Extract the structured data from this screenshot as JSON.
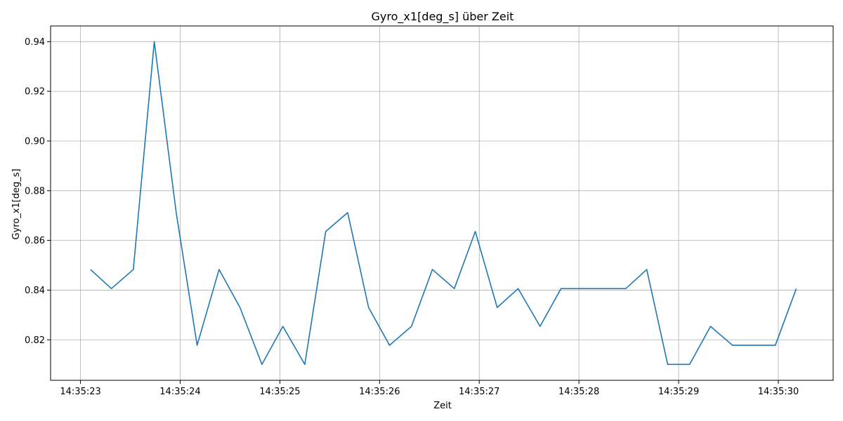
{
  "chart_data": {
    "type": "line",
    "title": "Gyro_x1[deg_s] über Zeit",
    "xlabel": "Zeit",
    "ylabel": "Gyro_x1[deg_s]",
    "x_unit": "seconds",
    "xlim": [
      22.7,
      30.55
    ],
    "ylim": [
      0.8037,
      0.9463
    ],
    "grid": true,
    "x_ticks": [
      {
        "value": 23,
        "label": "14:35:23"
      },
      {
        "value": 24,
        "label": "14:35:24"
      },
      {
        "value": 25,
        "label": "14:35:25"
      },
      {
        "value": 26,
        "label": "14:35:26"
      },
      {
        "value": 27,
        "label": "14:35:27"
      },
      {
        "value": 28,
        "label": "14:35:28"
      },
      {
        "value": 29,
        "label": "14:35:29"
      },
      {
        "value": 30,
        "label": "14:35:30"
      }
    ],
    "y_ticks": [
      {
        "value": 0.82,
        "label": "0.82"
      },
      {
        "value": 0.84,
        "label": "0.84"
      },
      {
        "value": 0.86,
        "label": "0.86"
      },
      {
        "value": 0.88,
        "label": "0.88"
      },
      {
        "value": 0.9,
        "label": "0.90"
      },
      {
        "value": 0.92,
        "label": "0.92"
      },
      {
        "value": 0.94,
        "label": "0.94"
      }
    ],
    "series": [
      {
        "color": "#1f77b4",
        "x": [
          23.1,
          23.31,
          23.53,
          23.74,
          23.96,
          24.17,
          24.39,
          24.6,
          24.82,
          25.03,
          25.25,
          25.46,
          25.68,
          25.89,
          26.1,
          26.32,
          26.53,
          26.75,
          26.96,
          27.18,
          27.39,
          27.61,
          27.82,
          28.04,
          28.25,
          28.47,
          28.68,
          28.89,
          29.11,
          29.32,
          29.54,
          29.75,
          29.97,
          30.18
        ],
        "y": [
          0.8483,
          0.8406,
          0.8483,
          0.94,
          0.8712,
          0.8178,
          0.8483,
          0.833,
          0.8101,
          0.8254,
          0.8101,
          0.8636,
          0.8712,
          0.833,
          0.8178,
          0.8254,
          0.8483,
          0.8406,
          0.8636,
          0.833,
          0.8406,
          0.8254,
          0.8406,
          0.8406,
          0.8406,
          0.8406,
          0.8483,
          0.8101,
          0.8101,
          0.8254,
          0.8178,
          0.8178,
          0.8178,
          0.8406
        ]
      }
    ]
  }
}
